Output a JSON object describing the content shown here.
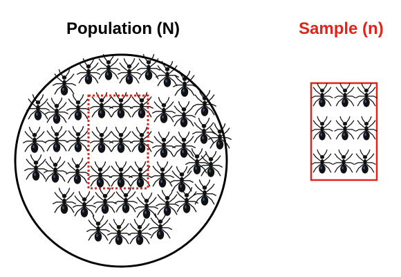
{
  "population": {
    "title": "Population (N)"
  },
  "sample": {
    "title": "Sample (n)"
  },
  "colors": {
    "sample_accent": "#e0241b",
    "circle": "#000000",
    "ant": "#111111"
  },
  "icon": "ant-icon"
}
